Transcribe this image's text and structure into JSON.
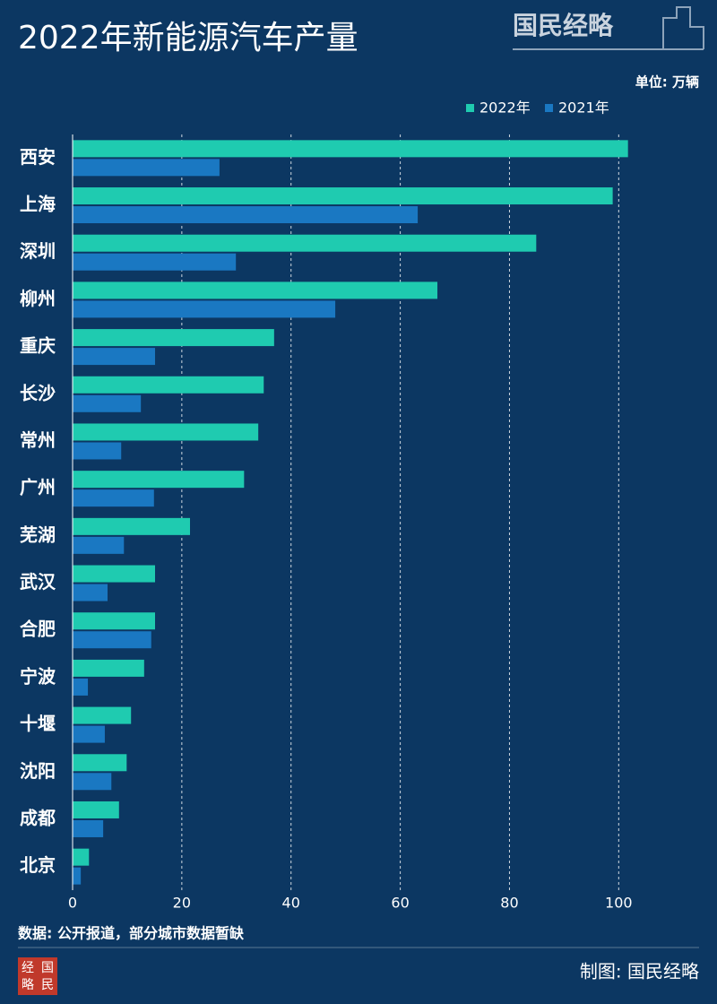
{
  "chart_data": {
    "type": "bar",
    "orientation": "horizontal",
    "title": "2022年新能源汽车产量",
    "unit": "单位: 万辆",
    "categories": [
      "西安",
      "上海",
      "深圳",
      "柳州",
      "重庆",
      "长沙",
      "常州",
      "广州",
      "芜湖",
      "武汉",
      "合肥",
      "宁波",
      "十堰",
      "沈阳",
      "成都",
      "北京"
    ],
    "series": [
      {
        "name": "2022年",
        "color": "#1fcbb0",
        "values": [
          101.7,
          98.9,
          84.9,
          66.8,
          36.9,
          35.0,
          34.0,
          31.4,
          21.5,
          15.1,
          15.1,
          13.1,
          10.7,
          9.9,
          8.5,
          3.0
        ]
      },
      {
        "name": "2021年",
        "color": "#1a78c2",
        "values": [
          26.9,
          63.2,
          29.9,
          48.1,
          15.1,
          12.5,
          8.9,
          14.9,
          9.4,
          6.4,
          14.4,
          2.8,
          5.9,
          7.1,
          5.6,
          1.5
        ]
      }
    ],
    "xlim": [
      0,
      118
    ],
    "xticks": [
      0,
      20,
      40,
      60,
      80,
      100
    ],
    "grid": true,
    "legend": "top-right",
    "source": "数据: 公开报道，部分城市数据暂缺"
  },
  "brand": {
    "logo": "国民经略",
    "seal": [
      "经",
      "国",
      "略",
      "民"
    ],
    "credit": "制图: 国民经略"
  }
}
